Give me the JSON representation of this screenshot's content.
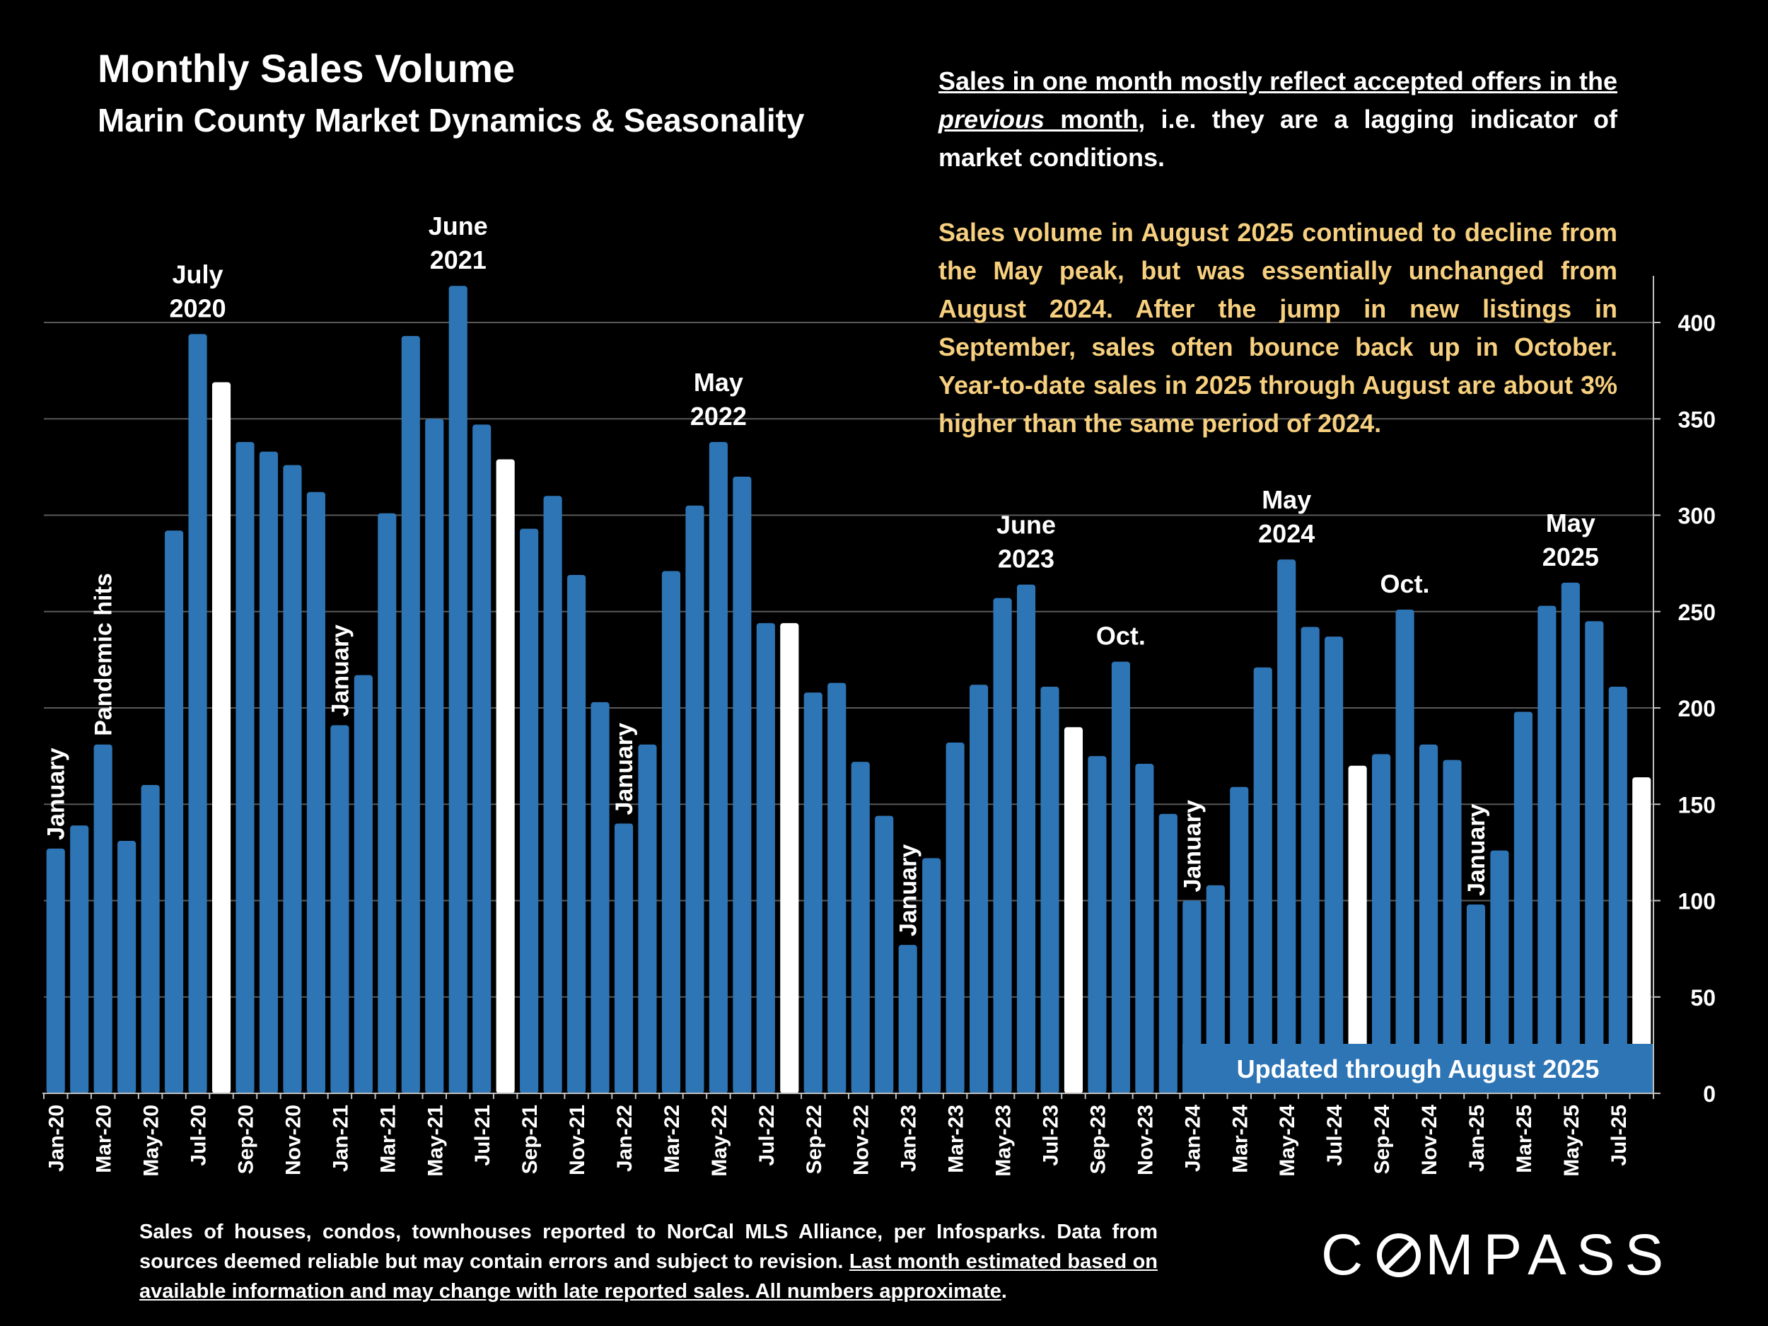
{
  "title": "Monthly Sales Volume",
  "subtitle": "Marin County Market Dynamics & Seasonality",
  "notes": {
    "lagging_a": "Sales in one month mostly reflect accepted offers in the ",
    "lagging_em": "previous",
    "lagging_b": " month",
    "lagging_c": ", i.e. they are a lagging indicator of market conditions.",
    "august": "Sales volume in August 2025 continued to decline from the May peak, but was essentially unchanged from August 2024. After the jump in new listings in September, sales often bounce back up in October. Year-to-date sales in 2025 through August are about 3% higher than the same period of 2024."
  },
  "updated_label": "Updated through August 2025",
  "footer": {
    "text": "Sales of houses, condos, townhouses reported to NorCal MLS Alliance, per Infosparks. Data from sources deemed reliable but may contain errors and subject to revision. ",
    "underlined": "Last month estimated based on available information and may change with late reported sales. All numbers approximate",
    "end": "."
  },
  "logo": {
    "pre": "C",
    "post": "MPASS"
  },
  "colors": {
    "bar": "#2e75b6",
    "highlight_bar": "#ffffff",
    "note_highlight": "#f6cf7f",
    "background": "#000000"
  },
  "chart_data": {
    "type": "bar",
    "ylim": [
      0,
      420
    ],
    "yticks": [
      0,
      50,
      100,
      150,
      200,
      250,
      300,
      350,
      400
    ],
    "y_axis_side": "right",
    "grid": true,
    "categories": [
      "Jan-20",
      "Feb-20",
      "Mar-20",
      "Apr-20",
      "May-20",
      "Jun-20",
      "Jul-20",
      "Aug-20",
      "Sep-20",
      "Oct-20",
      "Nov-20",
      "Dec-20",
      "Jan-21",
      "Feb-21",
      "Mar-21",
      "Apr-21",
      "May-21",
      "Jun-21",
      "Jul-21",
      "Aug-21",
      "Sep-21",
      "Oct-21",
      "Nov-21",
      "Dec-21",
      "Jan-22",
      "Feb-22",
      "Mar-22",
      "Apr-22",
      "May-22",
      "Jun-22",
      "Jul-22",
      "Aug-22",
      "Sep-22",
      "Oct-22",
      "Nov-22",
      "Dec-22",
      "Jan-23",
      "Feb-23",
      "Mar-23",
      "Apr-23",
      "May-23",
      "Jun-23",
      "Jul-23",
      "Aug-23",
      "Sep-23",
      "Oct-23",
      "Nov-23",
      "Dec-23",
      "Jan-24",
      "Feb-24",
      "Mar-24",
      "Apr-24",
      "May-24",
      "Jun-24",
      "Jul-24",
      "Aug-24",
      "Sep-24",
      "Oct-24",
      "Nov-24",
      "Dec-24",
      "Jan-25",
      "Feb-25",
      "Mar-25",
      "Apr-25",
      "May-25",
      "Jun-25",
      "Jul-25",
      "Aug-25"
    ],
    "tick_labels": [
      "Jan-20",
      "Mar-20",
      "May-20",
      "Jul-20",
      "Sep-20",
      "Nov-20",
      "Jan-21",
      "Mar-21",
      "May-21",
      "Jul-21",
      "Sep-21",
      "Nov-21",
      "Jan-22",
      "Mar-22",
      "May-22",
      "Jul-22",
      "Sep-22",
      "Nov-22",
      "Jan-23",
      "Mar-23",
      "May-23",
      "Jul-23",
      "Sep-23",
      "Nov-23",
      "Jan-24",
      "Mar-24",
      "May-24",
      "Jul-24",
      "Sep-24",
      "Nov-24",
      "Jan-25",
      "Mar-25",
      "May-25",
      "Jul-25"
    ],
    "values": [
      127,
      139,
      181,
      131,
      160,
      292,
      394,
      369,
      338,
      333,
      326,
      312,
      191,
      217,
      301,
      393,
      350,
      419,
      347,
      329,
      293,
      310,
      269,
      203,
      140,
      181,
      271,
      305,
      338,
      320,
      244,
      244,
      208,
      213,
      172,
      144,
      77,
      122,
      182,
      212,
      257,
      264,
      211,
      190,
      175,
      224,
      171,
      145,
      100,
      108,
      159,
      221,
      277,
      242,
      237,
      170,
      176,
      251,
      181,
      173,
      98,
      126,
      198,
      253,
      265,
      245,
      211,
      164
    ],
    "highlight_months": [
      "Aug-20",
      "Aug-21",
      "Aug-22",
      "Aug-23",
      "Aug-24",
      "Aug-25"
    ],
    "annotations": [
      {
        "month": "Jan-20",
        "lines": [
          "January"
        ],
        "rotated": true
      },
      {
        "month": "Mar-20",
        "lines": [
          "Pandemic hits"
        ],
        "rotated": true
      },
      {
        "month": "Jul-20",
        "lines": [
          "July",
          "2020"
        ],
        "rotated": false
      },
      {
        "month": "Jan-21",
        "lines": [
          "January"
        ],
        "rotated": true
      },
      {
        "month": "Jun-21",
        "lines": [
          "June",
          "2021"
        ],
        "rotated": false
      },
      {
        "month": "Jan-22",
        "lines": [
          "January"
        ],
        "rotated": true
      },
      {
        "month": "May-22",
        "lines": [
          "May",
          "2022"
        ],
        "rotated": false
      },
      {
        "month": "Jan-23",
        "lines": [
          "January"
        ],
        "rotated": true
      },
      {
        "month": "Jun-23",
        "lines": [
          "June",
          "2023"
        ],
        "rotated": false
      },
      {
        "month": "Oct-23",
        "lines": [
          "Oct."
        ],
        "rotated": false
      },
      {
        "month": "Jan-24",
        "lines": [
          "January"
        ],
        "rotated": true
      },
      {
        "month": "May-24",
        "lines": [
          "May",
          "2024"
        ],
        "rotated": false
      },
      {
        "month": "Oct-24",
        "lines": [
          "Oct."
        ],
        "rotated": false
      },
      {
        "month": "Jan-25",
        "lines": [
          "January"
        ],
        "rotated": true
      },
      {
        "month": "May-25",
        "lines": [
          "May",
          "2025"
        ],
        "rotated": false
      }
    ]
  }
}
